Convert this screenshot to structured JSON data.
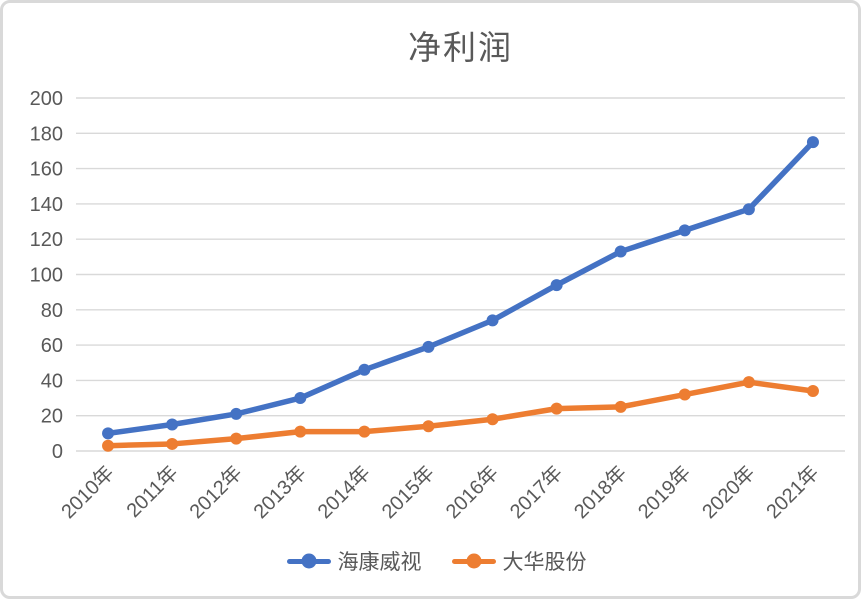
{
  "frame": {
    "background_color": "#ffffff",
    "border_color": "#d9d9d9"
  },
  "chart_data": {
    "type": "line",
    "title": "净利润",
    "categories": [
      "2010年",
      "2011年",
      "2012年",
      "2013年",
      "2014年",
      "2015年",
      "2016年",
      "2017年",
      "2018年",
      "2019年",
      "2020年",
      "2021年"
    ],
    "series": [
      {
        "name": "海康威视",
        "color": "#4472c4",
        "values": [
          10,
          15,
          21,
          30,
          46,
          59,
          74,
          94,
          113,
          125,
          137,
          175
        ]
      },
      {
        "name": "大华股份",
        "color": "#ed7d31",
        "values": [
          3,
          4,
          7,
          11,
          11,
          14,
          18,
          24,
          25,
          32,
          39,
          34
        ]
      }
    ],
    "xlabel": "",
    "ylabel": "",
    "ylim": [
      0,
      200
    ],
    "ytick_step": 20,
    "yticks": [
      0,
      20,
      40,
      60,
      80,
      100,
      120,
      140,
      160,
      180,
      200
    ],
    "grid": true,
    "x_label_rotation_deg": -45,
    "legend_position": "bottom",
    "styles": {
      "text_color": "#595959",
      "grid_color": "#d9d9d9",
      "title_color": "#595959"
    }
  }
}
